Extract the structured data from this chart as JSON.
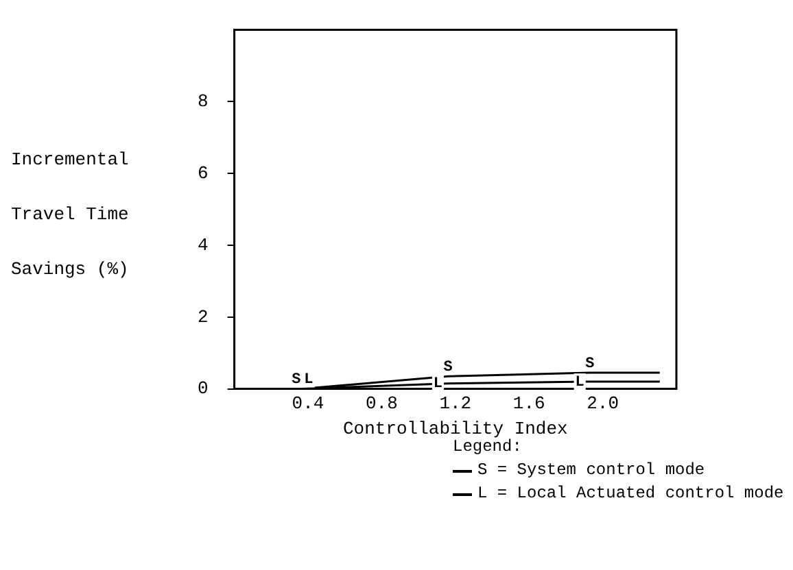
{
  "chart_data": {
    "type": "line",
    "xlabel": "Controllability Index",
    "ylabel": "Incremental Travel Time Savings (%)",
    "legend_title": "Legend:",
    "legend": "bottom right",
    "x": [
      0.37,
      1.16,
      1.93,
      2.31
    ],
    "series": [
      {
        "name": "S = System control mode",
        "color": "#000000",
        "values": [
          0,
          0.35,
          0.45,
          0.45
        ]
      },
      {
        "name": "L = Local Actuated control mode",
        "color": "#000000",
        "values": [
          0,
          0.15,
          0.2,
          0.2
        ]
      }
    ],
    "annotations": [
      {
        "text": "S",
        "x": 0.37,
        "y": 0
      },
      {
        "text": "L",
        "x": 0.37,
        "y": 0
      },
      {
        "text": "S",
        "x": 1.16,
        "y": 0.35
      },
      {
        "text": "L",
        "x": 1.16,
        "y": 0.15
      },
      {
        "text": "S",
        "x": 1.93,
        "y": 0.45
      },
      {
        "text": "L",
        "x": 1.93,
        "y": 0.2
      }
    ],
    "xlim": [
      0,
      2.4
    ],
    "xticks": [
      0.4,
      0.8,
      1.2,
      1.6,
      {
        "value": 2,
        "label": "2.0"
      }
    ],
    "ylim": [
      0,
      10
    ],
    "yticks": [
      0,
      2,
      4,
      6,
      8
    ],
    "grid": false,
    "marker": "none"
  }
}
